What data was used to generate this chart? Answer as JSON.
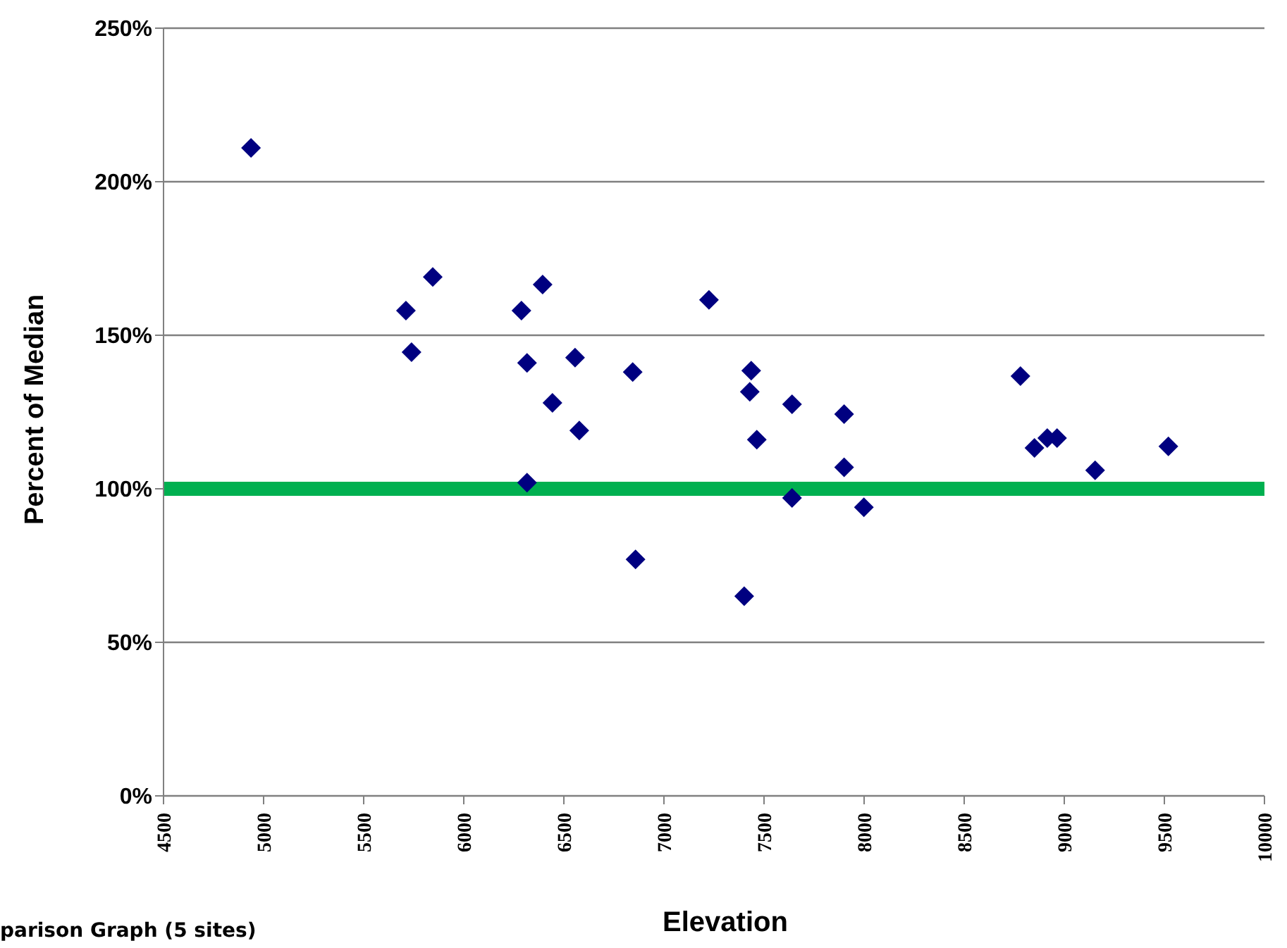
{
  "chart_data": {
    "type": "scatter",
    "xlabel": "Elevation",
    "ylabel": "Percent of Median",
    "x": [
      4937,
      5711,
      5739,
      5845,
      6288,
      6316,
      6394,
      6443,
      6316,
      6556,
      6577,
      6844,
      6858,
      7225,
      7436,
      7429,
      7464,
      7401,
      7640,
      7640,
      7900,
      7900,
      7999,
      8781,
      8851,
      8915,
      8964,
      9154,
      9520
    ],
    "series": [
      {
        "color": "#000080",
        "values": [
          211,
          158,
          144.5,
          169,
          158,
          141,
          166.5,
          128,
          102,
          142.7,
          119,
          138,
          77,
          161.5,
          138.5,
          131.6,
          116,
          65,
          127.5,
          97,
          124.3,
          107,
          94,
          136.7,
          113.3,
          116.5,
          116.5,
          106,
          113.8
        ]
      }
    ],
    "xlim": [
      4500,
      10000
    ],
    "xticks": [
      4500,
      5000,
      5500,
      6000,
      6500,
      7000,
      7500,
      8000,
      8500,
      9000,
      9500,
      10000
    ],
    "ylim": [
      0,
      250
    ],
    "yticks": [
      {
        "value": 0,
        "label": "0%"
      },
      {
        "value": 50,
        "label": "50%"
      },
      {
        "value": 100,
        "label": "100%"
      },
      {
        "value": 150,
        "label": "150%"
      },
      {
        "value": 200,
        "label": "200%"
      },
      {
        "value": 250,
        "label": "250%"
      }
    ],
    "ref_lines": [
      {
        "axis": "y",
        "value": 100,
        "color": "#00b050"
      }
    ],
    "grid": "y",
    "marker": "diamond",
    "annotations": [
      "parison Graph (5 sites)"
    ]
  }
}
